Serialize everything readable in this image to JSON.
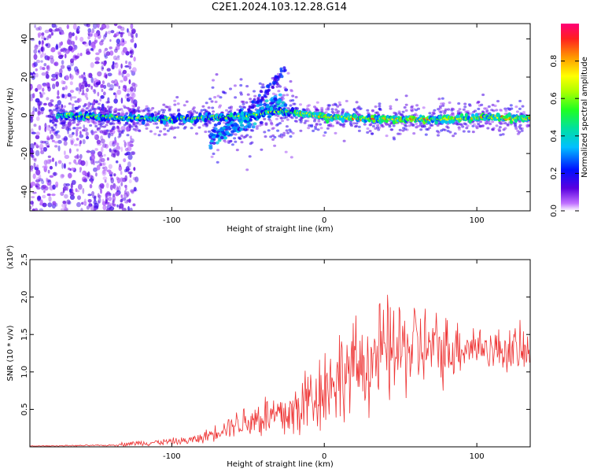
{
  "page_title": "C2E1.2024.103.12.28.G14",
  "chart_data": [
    {
      "type": "heatmap",
      "xlabel": "Height of straight line (km)",
      "ylabel": "Frequency (Hz)",
      "xlim": [
        -193,
        135
      ],
      "ylim": [
        -50,
        48
      ],
      "x_ticks": [
        "-100",
        "0",
        "100"
      ],
      "y_ticks": [
        "-40",
        "-20",
        "0",
        "20",
        "40"
      ],
      "colorbar": {
        "label": "Normalized spectral amplitude",
        "range": [
          0.0,
          1.0
        ],
        "ticks": [
          "0.0",
          "0.2",
          "0.4",
          "0.6",
          "0.8"
        ]
      },
      "ridge": {
        "description_points_x": [
          -170,
          -140,
          -100,
          -70,
          -50,
          -35,
          -25,
          -15,
          0,
          40,
          80,
          110,
          135
        ],
        "center_frequency": [
          0,
          -1,
          -2,
          -1,
          0,
          2,
          2,
          1,
          -1,
          -2,
          -2,
          -1,
          -2
        ]
      },
      "grid": false
    },
    {
      "type": "line",
      "xlabel": "Height of straight line (km)",
      "ylabel": "SNR (10 * v/v)",
      "y_multiplier": "(x10⁴)",
      "xlim": [
        -193,
        135
      ],
      "ylim": [
        0,
        2.5
      ],
      "x_ticks": [
        "-100",
        "0",
        "100"
      ],
      "y_ticks": [
        "0.5",
        "1.0",
        "1.5",
        "2.0",
        "2.5"
      ],
      "series_color": "#ee3333",
      "envelope": {
        "x": [
          -193,
          -140,
          -130,
          -110,
          -90,
          -80,
          -60,
          -50,
          -40,
          -30,
          -20,
          -10,
          0,
          10,
          20,
          30,
          40,
          50,
          60,
          70,
          80,
          90,
          100,
          110,
          120,
          135
        ],
        "mean": [
          0.01,
          0.02,
          0.04,
          0.06,
          0.08,
          0.12,
          0.3,
          0.35,
          0.4,
          0.4,
          0.45,
          0.65,
          0.8,
          0.95,
          1.05,
          1.15,
          1.25,
          1.3,
          1.35,
          1.3,
          1.3,
          1.35,
          1.35,
          1.3,
          1.3,
          1.25
        ],
        "amplitude": [
          0.005,
          0.01,
          0.03,
          0.04,
          0.05,
          0.07,
          0.15,
          0.25,
          0.3,
          0.35,
          0.4,
          0.5,
          0.55,
          0.6,
          0.6,
          0.65,
          0.7,
          0.65,
          0.6,
          0.5,
          0.45,
          0.35,
          0.3,
          0.25,
          0.3,
          0.35
        ]
      },
      "grid": false
    }
  ]
}
